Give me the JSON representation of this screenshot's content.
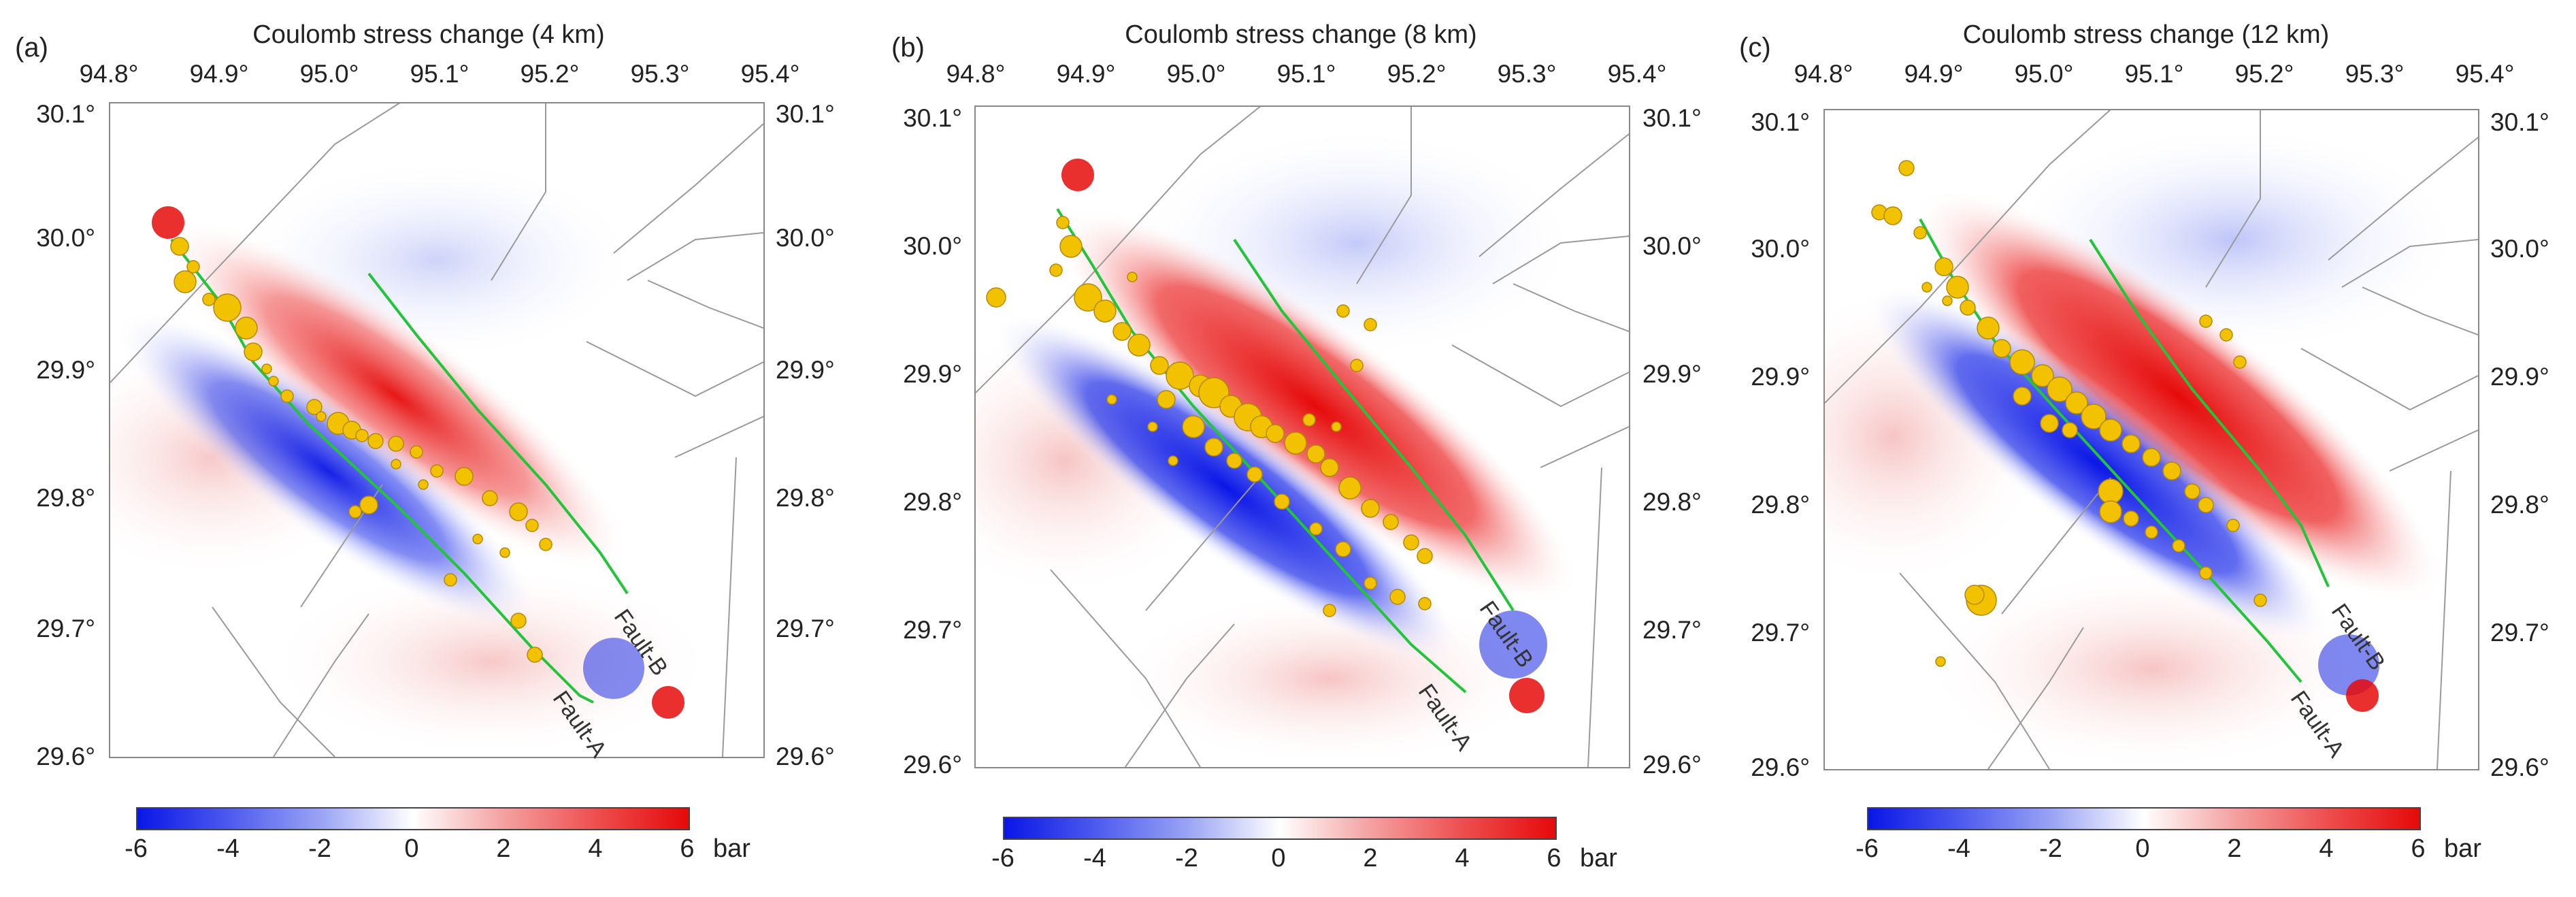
{
  "panels": [
    {
      "letter": "(a)",
      "title": "Coulomb stress change (4 km)"
    },
    {
      "letter": "(b)",
      "title": "Coulomb stress change (8 km)"
    },
    {
      "letter": "(c)",
      "title": "Coulomb stress change (12 km)"
    }
  ],
  "axes": {
    "lon_ticks": [
      "94.8°",
      "94.9°",
      "95.0°",
      "95.1°",
      "95.2°",
      "95.3°",
      "95.4°"
    ],
    "lat_ticks": [
      "30.1°",
      "30.0°",
      "29.9°",
      "29.8°",
      "29.7°",
      "29.6°"
    ]
  },
  "faults": {
    "a": "Fault-A",
    "b": "Fault-B"
  },
  "colorbar": {
    "ticks": [
      "-6",
      "-4",
      "-2",
      "0",
      "2",
      "4",
      "6"
    ],
    "unit": "bar",
    "min_color": "#0a16e6",
    "mid_color": "#ffffff",
    "max_color": "#e60a0a"
  },
  "colors": {
    "aftershock": "#f2c200",
    "aftershock_edge": "#b38900",
    "fault_trace": "#22c53a",
    "regional_fault": "#9a9a9a"
  }
}
